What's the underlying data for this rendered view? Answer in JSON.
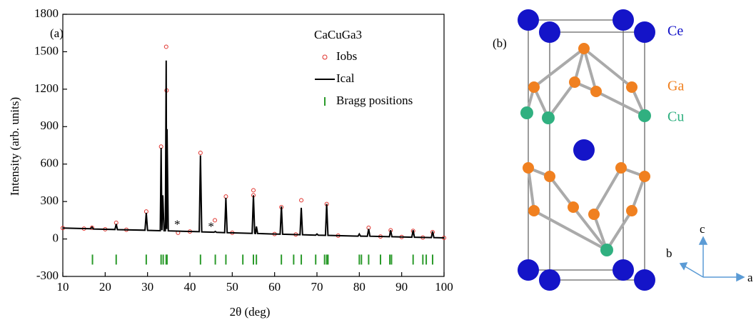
{
  "chart_data": {
    "type": "line",
    "label": "(a)",
    "legend_title": "CaCuGa3",
    "x_label": "2θ (deg)",
    "y_label": "Intensity (arb. units)",
    "xlim": [
      10,
      100
    ],
    "xticks": [
      10,
      20,
      30,
      40,
      50,
      60,
      70,
      80,
      90,
      100
    ],
    "ylim": [
      -300,
      1800
    ],
    "yticks": [
      -300,
      0,
      300,
      600,
      900,
      1200,
      1500,
      1800
    ],
    "grid": false,
    "legend": "upper right",
    "series": [
      {
        "name": "Iobs",
        "type": "scatter",
        "color": "#e0302a",
        "x": [
          16.9,
          22.6,
          29.7,
          33.2,
          34.4,
          34.5,
          37.2,
          42.5,
          45.9,
          48.5,
          55.0,
          55.0,
          61.6,
          66.3,
          72.3,
          82.2,
          87.4,
          92.7,
          97.3,
          10,
          15,
          20,
          25,
          40,
          50,
          60,
          65,
          75,
          85,
          90,
          95,
          100
        ],
        "values": [
          90,
          130,
          220,
          740,
          1540,
          1190,
          50,
          690,
          150,
          340,
          390,
          350,
          255,
          310,
          280,
          90,
          70,
          65,
          55,
          88,
          83,
          78,
          74,
          60,
          50,
          40,
          36,
          27,
          20,
          16,
          12,
          9
        ]
      },
      {
        "name": "Ical",
        "type": "line",
        "color": "#000000",
        "x": [
          10,
          16.6,
          16.9,
          17.2,
          22.3,
          22.6,
          22.9,
          29.4,
          29.7,
          30.0,
          33.0,
          33.2,
          33.4,
          33.6,
          33.9,
          34.2,
          34.4,
          34.5,
          34.6,
          34.9,
          42.2,
          42.5,
          42.8,
          45.7,
          46.0,
          46.3,
          48.2,
          48.5,
          48.8,
          54.7,
          55.0,
          55.3,
          55.5,
          55.7,
          56.0,
          61.3,
          61.6,
          61.9,
          66.0,
          66.3,
          66.6,
          69.7,
          70.0,
          70.3,
          72.0,
          72.3,
          72.6,
          79.7,
          80.0,
          80.3,
          81.9,
          82.2,
          82.5,
          87.1,
          87.4,
          87.7,
          92.4,
          92.7,
          93.0,
          97.0,
          97.3,
          97.6,
          100
        ],
        "values": [
          88,
          82,
          95,
          80,
          76,
          120,
          75,
          70,
          210,
          69,
          66,
          730,
          70,
          350,
          66,
          66,
          1430,
          80,
          880,
          65,
          58,
          670,
          57,
          54,
          60,
          53,
          51,
          330,
          50,
          45,
          350,
          45,
          44,
          100,
          44,
          38,
          260,
          38,
          34,
          250,
          34,
          31,
          40,
          31,
          29,
          280,
          29,
          23,
          40,
          23,
          22,
          80,
          22,
          18,
          70,
          18,
          14,
          70,
          14,
          11,
          60,
          11,
          9
        ]
      },
      {
        "name": "Bragg positions",
        "type": "ticks",
        "color": "#2a9a2a",
        "x": [
          17,
          22.6,
          29.7,
          33.2,
          33.7,
          34.4,
          34.6,
          42.5,
          46,
          48.5,
          52.5,
          55,
          55.7,
          61.6,
          64.5,
          66.3,
          69.7,
          71.8,
          72.3,
          72.6,
          80,
          80.5,
          82.2,
          85,
          87.2,
          87.6,
          92.7,
          95,
          95.8,
          97.3
        ],
        "values": [
          -165,
          -165,
          -165,
          -165,
          -165,
          -165,
          -165,
          -165,
          -165,
          -165,
          -165,
          -165,
          -165,
          -165,
          -165,
          -165,
          -165,
          -165,
          -165,
          -165,
          -165,
          -165,
          -165,
          -165,
          -165,
          -165,
          -165,
          -165,
          -165,
          -165
        ]
      }
    ],
    "annotations": [
      {
        "text": "*",
        "x": 37,
        "y": 110
      },
      {
        "text": "*",
        "x": 45,
        "y": 90
      }
    ]
  },
  "structure": {
    "label": "(b)",
    "atoms": [
      "Ce",
      "Ga",
      "Cu"
    ],
    "axes": [
      "c",
      "b",
      "a"
    ]
  }
}
